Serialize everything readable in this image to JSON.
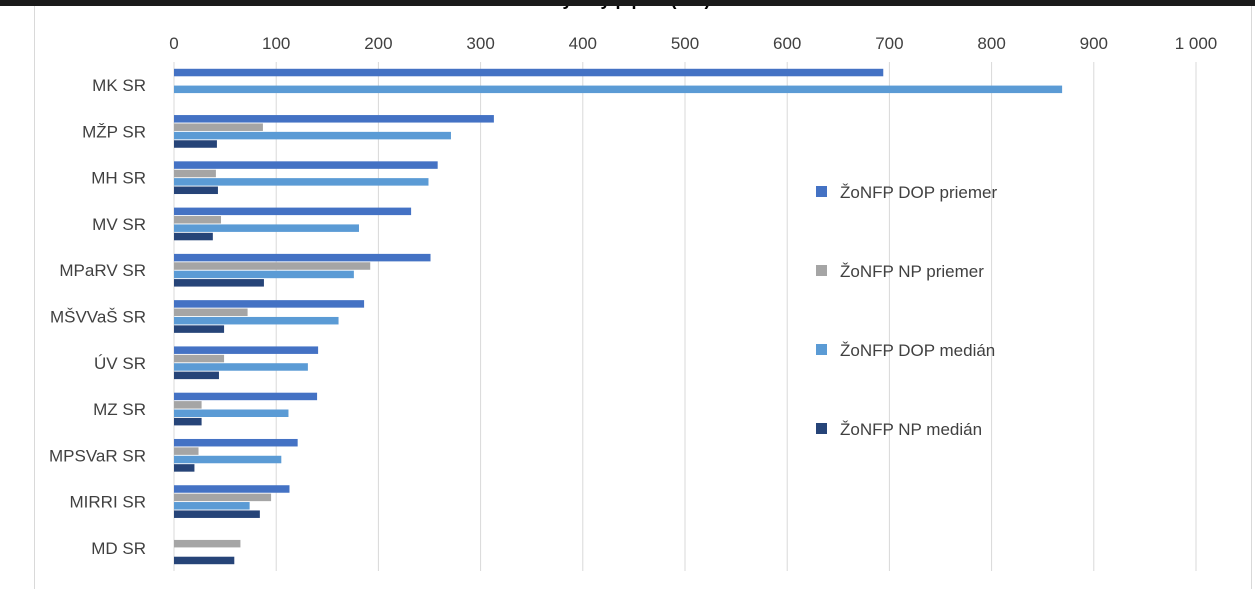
{
  "chart_data": {
    "type": "bar",
    "orientation": "horizontal",
    "title": "…y … y p p … ( … )",
    "xlim": [
      0,
      1000
    ],
    "x_ticks": [
      "0",
      "100",
      "200",
      "300",
      "400",
      "500",
      "600",
      "700",
      "800",
      "900",
      "1 000"
    ],
    "categories": [
      "MK SR",
      "MŽP SR",
      "MH SR",
      "MV SR",
      "MPaRV SR",
      "MŠVVaŠ SR",
      "ÚV SR",
      "MZ SR",
      "MPSVaR SR",
      "MIRRI SR",
      "MD SR"
    ],
    "series": [
      {
        "name": "ŽoNFP DOP priemer",
        "color": "#4472c4",
        "values": [
          694,
          313,
          258,
          232,
          251,
          186,
          141,
          140,
          121,
          113,
          null
        ]
      },
      {
        "name": "ŽoNFP NP priemer",
        "color": "#a5a5a5",
        "values": [
          null,
          87,
          41,
          46,
          192,
          72,
          49,
          27,
          24,
          95,
          65
        ]
      },
      {
        "name": "ŽoNFP DOP medián",
        "color": "#5b9bd5",
        "values": [
          869,
          271,
          249,
          181,
          176,
          161,
          131,
          112,
          105,
          74,
          null
        ]
      },
      {
        "name": "ŽoNFP NP medián",
        "color": "#264478",
        "values": [
          null,
          42,
          43,
          38,
          88,
          49,
          44,
          27,
          20,
          84,
          59
        ]
      }
    ],
    "grid": "vertical",
    "legend_position": "right"
  }
}
